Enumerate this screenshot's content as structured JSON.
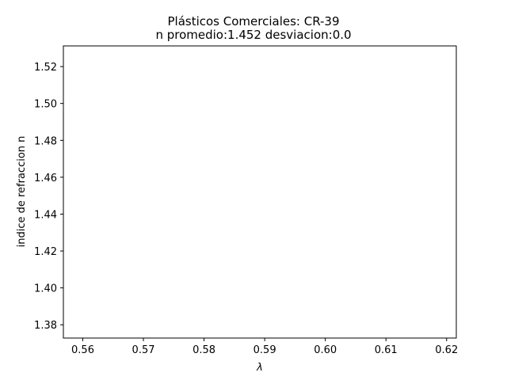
{
  "chart_data": {
    "type": "scatter",
    "title": "Plásticos Comerciales: CR-39",
    "subtitle": "n promedio:1.452 desviacion:0.0",
    "xlabel": "λ",
    "ylabel": "indice de refraccion n",
    "xlim": [
      0.5568,
      0.6216
    ],
    "ylim": [
      1.3728,
      1.5312
    ],
    "xticks": [
      0.56,
      0.57,
      0.58,
      0.59,
      0.6,
      0.61,
      0.62
    ],
    "xtick_labels": [
      "0.56",
      "0.57",
      "0.58",
      "0.59",
      "0.60",
      "0.61",
      "0.62"
    ],
    "yticks": [
      1.38,
      1.4,
      1.42,
      1.44,
      1.46,
      1.48,
      1.5,
      1.52
    ],
    "ytick_labels": [
      "1.38",
      "1.40",
      "1.42",
      "1.44",
      "1.46",
      "1.48",
      "1.50",
      "1.52"
    ],
    "grid": false,
    "series": [
      {
        "x": [],
        "y": []
      }
    ]
  }
}
